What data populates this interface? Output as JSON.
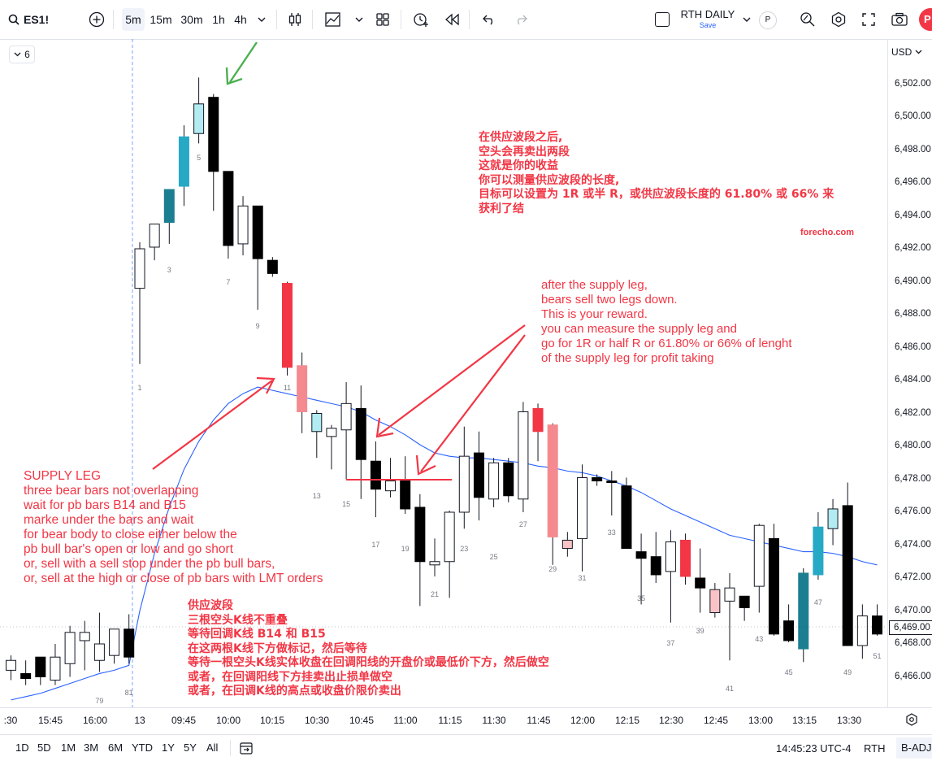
{
  "symbol": "ES1!",
  "toolbar": {
    "intervals": [
      "5m",
      "15m",
      "30m",
      "1h",
      "4h"
    ],
    "active_interval": "5m",
    "layout_name": "RTH DAILY",
    "layout_status": "Save",
    "badge_p": "P",
    "avatar": "P"
  },
  "legend": {
    "collapse_count": "6"
  },
  "price_axis": {
    "currency": "USD",
    "labels": [
      "6,502.00",
      "6,500.00",
      "6,498.00",
      "6,496.00",
      "6,494.00",
      "6,492.00",
      "6,490.00",
      "6,488.00",
      "6,486.00",
      "6,484.00",
      "6,482.00",
      "6,480.00",
      "6,478.00",
      "6,476.00",
      "6,474.00",
      "6,472.00",
      "6,470.00",
      "6,468.00",
      "6,466.00"
    ],
    "last_price": "6,469.00"
  },
  "time_axis": {
    "labels": [
      ":30",
      "15:45",
      "16:00",
      "13",
      "09:45",
      "10:00",
      "10:15",
      "10:30",
      "10:45",
      "11:00",
      "11:15",
      "11:30",
      "11:45",
      "12:00",
      "12:15",
      "12:30",
      "12:45",
      "13:00",
      "13:15",
      "13:30"
    ]
  },
  "bottom_bar": {
    "ranges": [
      "1D",
      "5D",
      "1M",
      "3M",
      "6M",
      "YTD",
      "1Y",
      "5Y",
      "All"
    ],
    "clock": "14:45:23 UTC-4",
    "session": "RTH",
    "adjustment": "B-ADJ"
  },
  "bar_numbers": [
    "79",
    "81",
    "1",
    "3",
    "5",
    "7",
    "9",
    "11",
    "13",
    "15",
    "17",
    "19",
    "21",
    "23",
    "25",
    "27",
    "29",
    "31",
    "33",
    "35",
    "37",
    "39",
    "41",
    "43",
    "45",
    "47",
    "49",
    "51"
  ],
  "annotations": {
    "zh_top": "在供应波段之后,\n空头会再卖出两段\n这就是你的收益\n你可以测量供应波段的长度,\n目标可以设置为 1R 或半 R，或供应波段长度的 61.80% 或 66% 来\n获利了结",
    "watermark": "forecho.com",
    "en_right": "after the supply leg,\nbears sell two legs down.\nThis is your reward.\nyou can measure the supply leg and\ngo for 1R or half R or 61.80% or 66% of lenght\nof the supply leg for profit taking",
    "en_left": "SUPPLY LEG\nthree bear bars not overlapping\nwait for pb bars B14 and B15\nmarke under the bars and wait\nfor bear body to close either below the\npb bull bar's open or low and go short\nor, sell with a sell stop under the pb bull bars,\nor, sell at the high or close of pb bars with LMT orders",
    "zh_bottom": "供应波段\n三根空头K线不重叠\n等待回调K线 B14 和 B15\n在这两根K线下方做标记，然后等待\n等待一根空头K线实体收盘在回调阳线的开盘价或最低价下方，然后做空\n或者，在回调阳线下方挂卖出止损单做空\n或者，在回调K线的高点或收盘价限价卖出"
  },
  "chart_data": {
    "type": "candlestick",
    "price_ylim": [
      6465.6,
      6503.8
    ],
    "colors": {
      "bull_trend": "#26a9c5",
      "bull_trend_dark": "#1b7f91",
      "bull_weak": "#ffffff",
      "bull_pale": "#b2ebf2",
      "bear_trend": "#000000",
      "bear_red": "#f23645",
      "bear_pink": "#f48a8f",
      "bear_pale": "#fac3c5",
      "ema": "#2962ff",
      "annotation": "#f23645",
      "arrow_green": "#4caf50"
    },
    "candles": [
      {
        "t": "15:35",
        "o": 6466.4,
        "h": 6467.3,
        "l": 6465.8,
        "c": 6467.0,
        "col": "bull_weak"
      },
      {
        "t": "15:40",
        "o": 6466.2,
        "h": 6467.0,
        "l": 6465.5,
        "c": 6465.9,
        "col": "bear_trend"
      },
      {
        "t": "15:45",
        "o": 6466.0,
        "h": 6467.2,
        "l": 6465.5,
        "c": 6467.2,
        "col": "bear_trend"
      },
      {
        "t": "15:50",
        "o": 6465.8,
        "h": 6468.0,
        "l": 6465.5,
        "c": 6467.2,
        "col": "bull_weak"
      },
      {
        "t": "15:55",
        "o": 6466.8,
        "h": 6469.1,
        "l": 6466.0,
        "c": 6468.7,
        "col": "bull_weak"
      },
      {
        "t": "16:00",
        "o": 6468.2,
        "h": 6469.4,
        "l": 6466.4,
        "c": 6468.7,
        "col": "bull_weak"
      },
      {
        "t": "16:05",
        "o": 6467.0,
        "h": 6469.9,
        "l": 6466.3,
        "c": 6468.0,
        "col": "bull_weak"
      },
      {
        "t": "16:10",
        "o": 6467.3,
        "h": 6468.8,
        "l": 6466.8,
        "c": 6468.9,
        "col": "bull_weak"
      },
      {
        "t": "16:15",
        "o": 6468.9,
        "h": 6469.8,
        "l": 6466.8,
        "c": 6467.2,
        "col": "bear_trend"
      },
      {
        "t": "09:30",
        "o": 6489.6,
        "h": 6492.4,
        "l": 6485.0,
        "c": 6492.0,
        "col": "bull_weak"
      },
      {
        "t": "09:35",
        "o": 6492.1,
        "h": 6493.4,
        "l": 6491.3,
        "c": 6493.5,
        "col": "bull_weak"
      },
      {
        "t": "09:40",
        "o": 6493.6,
        "h": 6495.5,
        "l": 6492.3,
        "c": 6495.6,
        "col": "bull_trend_dark"
      },
      {
        "t": "09:45",
        "o": 6495.8,
        "h": 6499.5,
        "l": 6494.6,
        "c": 6498.8,
        "col": "bull_trend"
      },
      {
        "t": "09:50",
        "o": 6499.0,
        "h": 6502.4,
        "l": 6498.4,
        "c": 6500.8,
        "col": "bull_pale"
      },
      {
        "t": "09:55",
        "o": 6501.2,
        "h": 6501.4,
        "l": 6494.3,
        "c": 6496.7,
        "col": "bear_trend"
      },
      {
        "t": "10:00",
        "o": 6496.7,
        "h": 6496.7,
        "l": 6491.4,
        "c": 6492.2,
        "col": "bear_trend"
      },
      {
        "t": "10:05",
        "o": 6492.3,
        "h": 6495.2,
        "l": 6491.6,
        "c": 6494.6,
        "col": "bull_weak"
      },
      {
        "t": "10:10",
        "o": 6494.6,
        "h": 6494.6,
        "l": 6488.3,
        "c": 6491.4,
        "col": "bear_trend"
      },
      {
        "t": "10:15",
        "o": 6491.3,
        "h": 6491.5,
        "l": 6490.3,
        "c": 6490.5,
        "col": "bear_trend"
      },
      {
        "t": "10:20",
        "o": 6489.9,
        "h": 6490.0,
        "l": 6484.3,
        "c": 6484.8,
        "col": "bear_red"
      },
      {
        "t": "10:25",
        "o": 6484.9,
        "h": 6485.7,
        "l": 6480.8,
        "c": 6482.1,
        "col": "bear_pink"
      },
      {
        "t": "10:30",
        "o": 6480.9,
        "h": 6482.2,
        "l": 6479.3,
        "c": 6482.0,
        "col": "bull_pale"
      },
      {
        "t": "10:35",
        "o": 6480.6,
        "h": 6481.3,
        "l": 6478.6,
        "c": 6481.1,
        "col": "bull_weak"
      },
      {
        "t": "10:40",
        "o": 6481.0,
        "h": 6483.9,
        "l": 6478.0,
        "c": 6482.6,
        "col": "bull_weak"
      },
      {
        "t": "10:45",
        "o": 6482.3,
        "h": 6483.7,
        "l": 6476.8,
        "c": 6479.2,
        "col": "bear_trend"
      },
      {
        "t": "10:50",
        "o": 6479.1,
        "h": 6480.3,
        "l": 6475.7,
        "c": 6477.4,
        "col": "bear_trend"
      },
      {
        "t": "10:55",
        "o": 6477.3,
        "h": 6479.3,
        "l": 6476.9,
        "c": 6477.9,
        "col": "bull_weak"
      },
      {
        "t": "11:00",
        "o": 6477.9,
        "h": 6479.4,
        "l": 6475.9,
        "c": 6476.2,
        "col": "bear_trend"
      },
      {
        "t": "11:05",
        "o": 6476.3,
        "h": 6477.1,
        "l": 6470.3,
        "c": 6473.0,
        "col": "bear_trend"
      },
      {
        "t": "11:10",
        "o": 6472.8,
        "h": 6474.4,
        "l": 6472.1,
        "c": 6473.0,
        "col": "bull_weak"
      },
      {
        "t": "11:15",
        "o": 6473.0,
        "h": 6476.1,
        "l": 6470.8,
        "c": 6476.0,
        "col": "bull_weak"
      },
      {
        "t": "11:20",
        "o": 6476.0,
        "h": 6481.2,
        "l": 6475.0,
        "c": 6479.4,
        "col": "bull_weak"
      },
      {
        "t": "11:25",
        "o": 6479.6,
        "h": 6480.9,
        "l": 6475.5,
        "c": 6476.9,
        "col": "bear_trend"
      },
      {
        "t": "11:30",
        "o": 6476.8,
        "h": 6479.3,
        "l": 6476.3,
        "c": 6479.0,
        "col": "bull_weak"
      },
      {
        "t": "11:35",
        "o": 6479.0,
        "h": 6479.3,
        "l": 6476.6,
        "c": 6477.0,
        "col": "bear_trend"
      },
      {
        "t": "11:40",
        "o": 6476.8,
        "h": 6482.7,
        "l": 6476.0,
        "c": 6482.1,
        "col": "bull_weak"
      },
      {
        "t": "11:45",
        "o": 6482.3,
        "h": 6482.6,
        "l": 6479.1,
        "c": 6480.9,
        "col": "bear_red"
      },
      {
        "t": "11:50",
        "o": 6481.3,
        "h": 6481.4,
        "l": 6472.8,
        "c": 6474.5,
        "col": "bear_pink"
      },
      {
        "t": "11:55",
        "o": 6474.3,
        "h": 6474.8,
        "l": 6473.3,
        "c": 6473.8,
        "col": "bear_pale"
      },
      {
        "t": "12:00",
        "o": 6474.4,
        "h": 6478.9,
        "l": 6472.4,
        "c": 6478.1,
        "col": "bull_weak"
      },
      {
        "t": "12:05",
        "o": 6477.9,
        "h": 6478.3,
        "l": 6477.6,
        "c": 6478.1,
        "col": "bear_trend"
      },
      {
        "t": "12:10",
        "o": 6477.9,
        "h": 6478.5,
        "l": 6475.8,
        "c": 6477.8,
        "col": "bear_trend"
      },
      {
        "t": "12:15",
        "o": 6477.6,
        "h": 6478.1,
        "l": 6473.8,
        "c": 6473.8,
        "col": "bear_trend"
      },
      {
        "t": "12:20",
        "o": 6473.6,
        "h": 6474.7,
        "l": 6470.4,
        "c": 6473.2,
        "col": "bear_trend"
      },
      {
        "t": "12:25",
        "o": 6473.3,
        "h": 6474.8,
        "l": 6471.7,
        "c": 6472.2,
        "col": "bear_trend"
      },
      {
        "t": "12:30",
        "o": 6472.4,
        "h": 6474.9,
        "l": 6469.3,
        "c": 6474.2,
        "col": "bull_weak"
      },
      {
        "t": "12:35",
        "o": 6474.3,
        "h": 6474.7,
        "l": 6471.6,
        "c": 6472.1,
        "col": "bear_red"
      },
      {
        "t": "12:40",
        "o": 6472.0,
        "h": 6473.8,
        "l": 6469.9,
        "c": 6471.4,
        "col": "bear_trend"
      },
      {
        "t": "12:45",
        "o": 6471.3,
        "h": 6471.7,
        "l": 6469.6,
        "c": 6469.9,
        "col": "bear_pale"
      },
      {
        "t": "12:50",
        "o": 6470.6,
        "h": 6472.3,
        "l": 6467.0,
        "c": 6471.4,
        "col": "bull_weak"
      },
      {
        "t": "12:55",
        "o": 6470.9,
        "h": 6470.9,
        "l": 6469.4,
        "c": 6470.2,
        "col": "bear_trend"
      },
      {
        "t": "13:00",
        "o": 6471.5,
        "h": 6475.3,
        "l": 6469.9,
        "c": 6475.2,
        "col": "bull_weak"
      },
      {
        "t": "13:05",
        "o": 6474.4,
        "h": 6475.3,
        "l": 6468.5,
        "c": 6468.6,
        "col": "bear_trend"
      },
      {
        "t": "13:10",
        "o": 6469.4,
        "h": 6470.4,
        "l": 6468.1,
        "c": 6468.2,
        "col": "bear_trend"
      },
      {
        "t": "13:15",
        "o": 6467.7,
        "h": 6472.6,
        "l": 6466.9,
        "c": 6472.3,
        "col": "bull_trend_dark"
      },
      {
        "t": "13:20",
        "o": 6472.2,
        "h": 6476.0,
        "l": 6471.9,
        "c": 6475.1,
        "col": "bull_trend"
      },
      {
        "t": "13:25",
        "o": 6475.0,
        "h": 6476.8,
        "l": 6474.0,
        "c": 6476.2,
        "col": "bull_pale"
      },
      {
        "t": "13:30",
        "o": 6476.4,
        "h": 6477.8,
        "l": 6467.9,
        "c": 6467.9,
        "col": "bear_trend"
      },
      {
        "t": "13:35",
        "o": 6467.9,
        "h": 6470.4,
        "l": 6467.1,
        "c": 6469.7,
        "col": "bull_weak"
      },
      {
        "t": "13:40",
        "o": 6469.7,
        "h": 6470.4,
        "l": 6468.5,
        "c": 6468.6,
        "col": "bear_trend"
      }
    ],
    "ema": [
      6464.6,
      6464.8,
      6465.0,
      6465.3,
      6465.6,
      6465.9,
      6466.2,
      6466.4,
      6466.7,
      6470.0,
      6473.5,
      6476.3,
      6478.6,
      6480.3,
      6481.6,
      6482.6,
      6483.2,
      6483.6,
      6483.4,
      6483.2,
      6483.0,
      6482.8,
      6482.6,
      6482.4,
      6482.1,
      6481.6,
      6481.2,
      6480.7,
      6480.1,
      6479.6,
      6479.4,
      6479.3,
      6479.3,
      6479.2,
      6479.1,
      6479.0,
      6478.8,
      6478.7,
      6478.5,
      6478.4,
      6478.2,
      6477.9,
      6477.6,
      6477.2,
      6476.7,
      6476.2,
      6475.8,
      6475.4,
      6475.0,
      6474.6,
      6474.4,
      6474.2,
      6474.0,
      6473.8,
      6473.6,
      6473.6,
      6473.5,
      6473.3,
      6473.0,
      6472.8
    ]
  }
}
